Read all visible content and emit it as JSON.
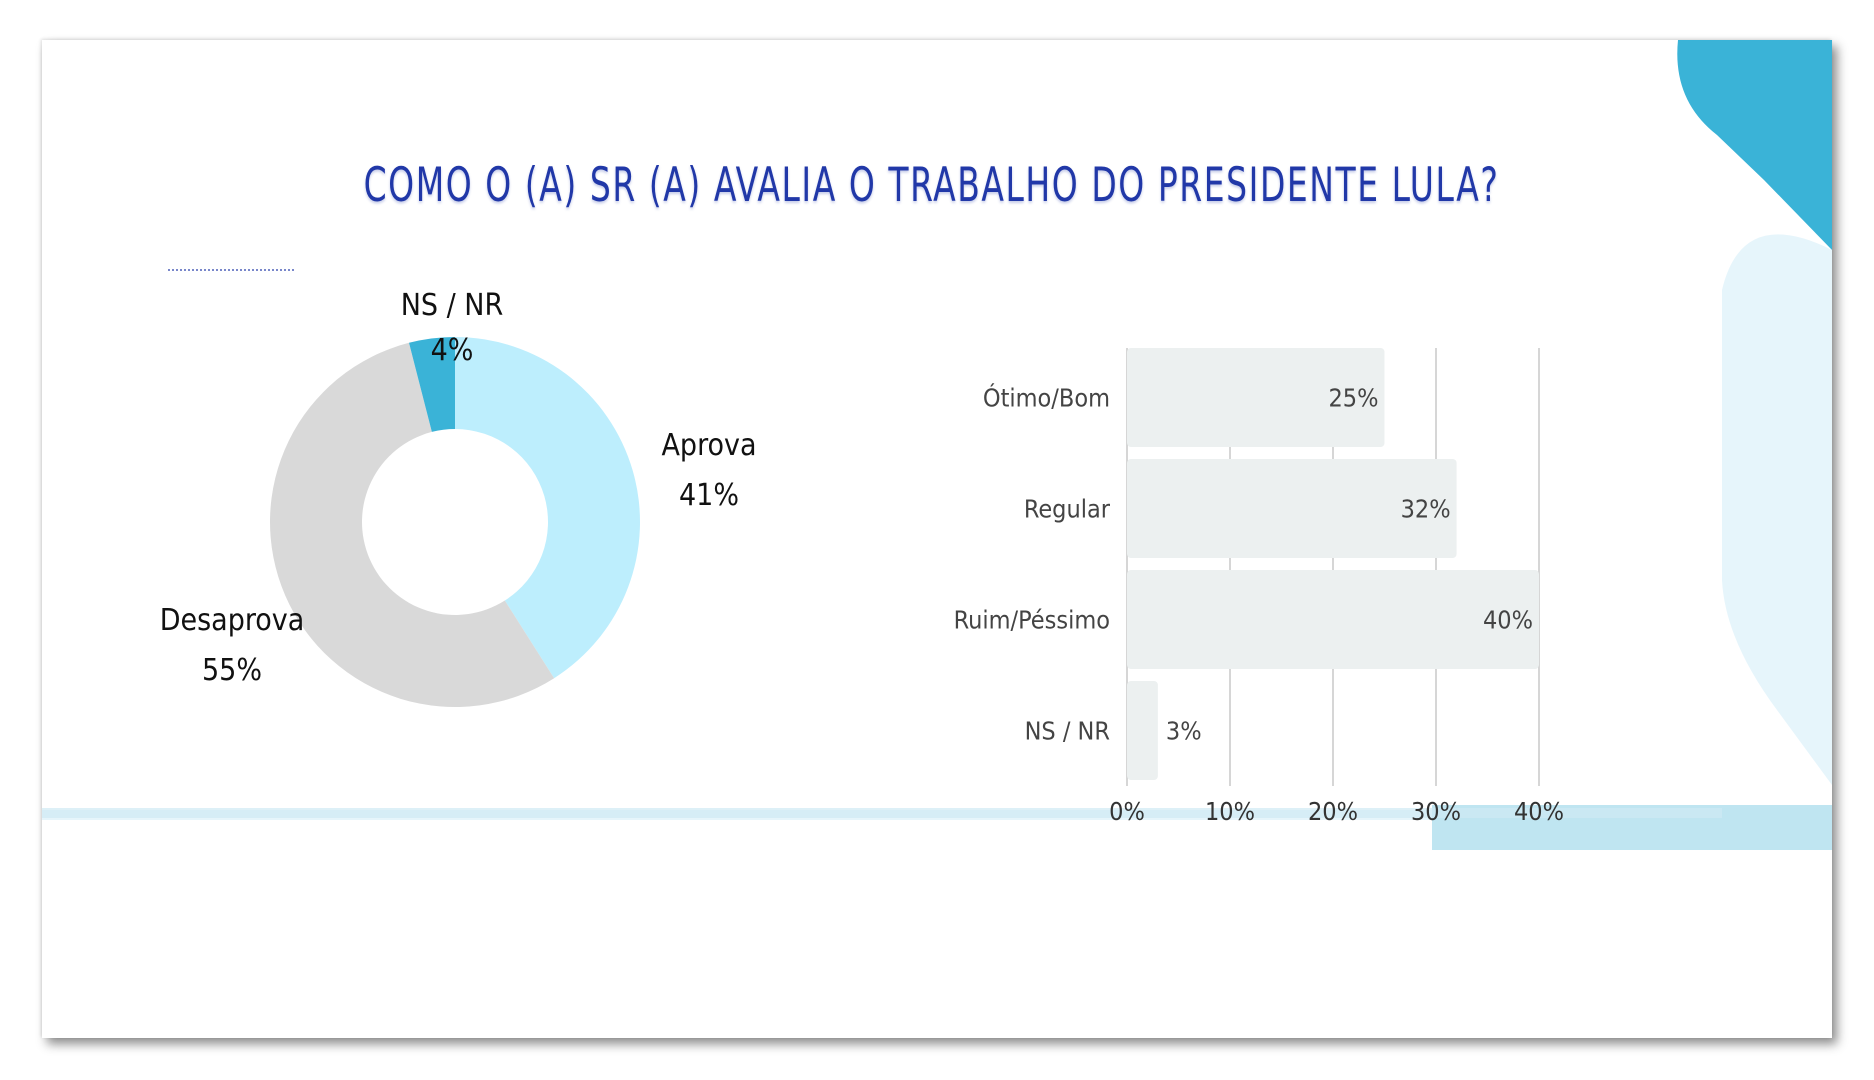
{
  "slide": {
    "title": "COMO O (A) SR (A) AVALIA O TRABALHO DO PRESIDENTE LULA?"
  },
  "colors": {
    "title": "#2138a8",
    "aprova": "#bdeefd",
    "desaprova": "#d9d9d9",
    "ns_nr": "#3ab3d7",
    "bar": "#ecf0f0",
    "accent_dark": "#3ab3d7",
    "accent_light": "#e6f5fb"
  },
  "chart_data": [
    {
      "type": "pie",
      "donut": true,
      "slices": [
        {
          "name": "Aprova",
          "value": 41,
          "label": "41%",
          "color": "#bdeefd"
        },
        {
          "name": "Desaprova",
          "value": 55,
          "label": "55%",
          "color": "#d9d9d9"
        },
        {
          "name": "NS / NR",
          "value": 4,
          "label": "4%",
          "color": "#3ab3d7"
        }
      ]
    },
    {
      "type": "bar",
      "orientation": "horizontal",
      "categories": [
        "Ótimo/Bom",
        "Regular",
        "Ruim/Péssimo",
        "NS / NR"
      ],
      "values": [
        25,
        32,
        40,
        3
      ],
      "value_labels": [
        "25%",
        "32%",
        "40%",
        "3%"
      ],
      "xlim": [
        0,
        40
      ],
      "ticks": [
        "0%",
        "10%",
        "20%",
        "30%",
        "40%"
      ],
      "grid": true
    }
  ]
}
